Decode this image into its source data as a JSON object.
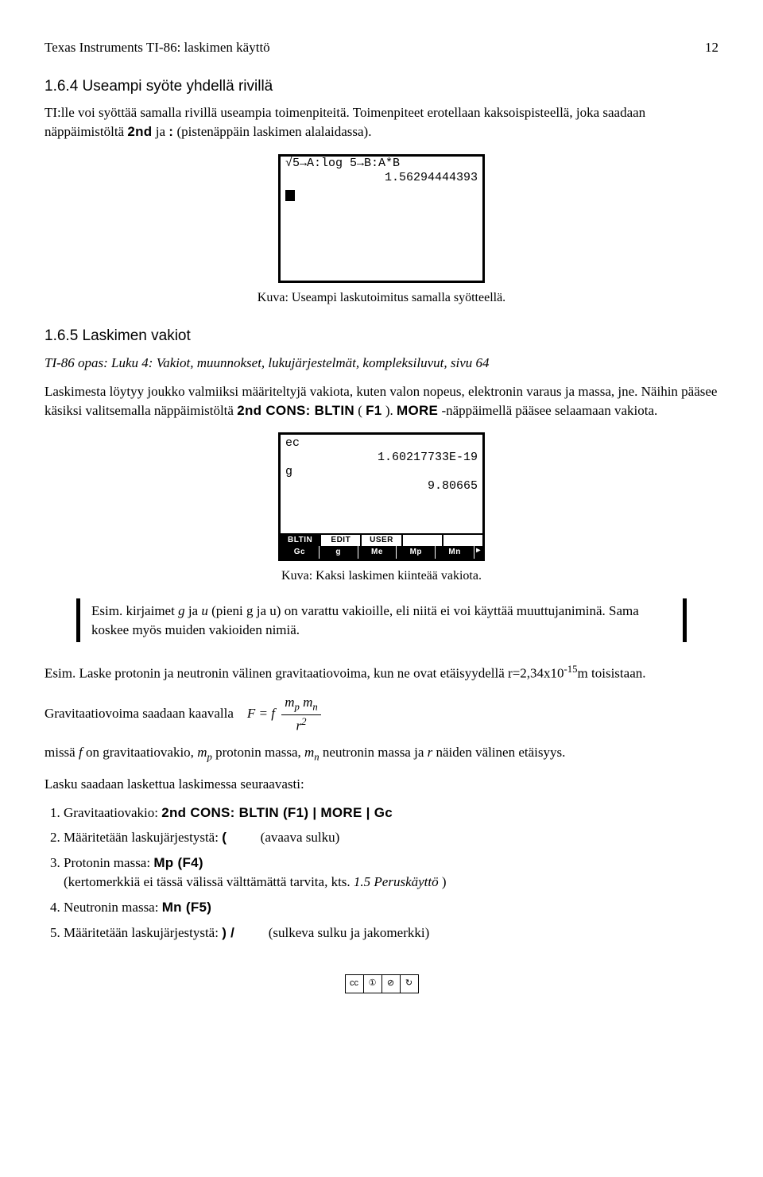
{
  "header": {
    "title": "Texas Instruments TI-86: laskimen käyttö",
    "page": "12"
  },
  "sec164": {
    "heading": "1.6.4 Useampi syöte yhdellä rivillä",
    "p1": "TI:lle voi syöttää samalla rivillä useampia toimenpiteitä. Toimenpiteet erotellaan kaksoispisteellä, joka saadaan näppäimistöltä ",
    "key1": "2nd",
    "p1b": " ja ",
    "key2": ":",
    "p1c": " (pistenäppäin laskimen alalaidassa).",
    "screen_line1": "√5→A:log 5→B:A*B",
    "screen_line2": "1.56294444393",
    "caption": "Kuva: Useampi laskutoimitus samalla syötteellä."
  },
  "sec165": {
    "heading": "1.6.5 Laskimen vakiot",
    "ref": "TI-86 opas: Luku 4: Vakiot, muunnokset, lukujärjestelmät, kompleksiluvut, sivu 64",
    "p1a": "Laskimesta löytyy joukko valmiiksi määriteltyjä vakiota, kuten valon nopeus, elektronin varaus ja massa, jne. Näihin pääsee käsiksi valitsemalla näppäimistöltä ",
    "key1": "2nd CONS: BLTIN",
    "key1b": " (",
    "key1c": "F1",
    "key1d": "). ",
    "key2": "MORE",
    "p1b": " -näppäimellä pääsee selaamaan vakiota.",
    "screen": {
      "l1": "ec",
      "l1r": "1.60217733E-19",
      "l2": "g",
      "l2r": "9.80665",
      "top": [
        "BLTIN",
        "EDIT",
        "USER",
        "",
        ""
      ],
      "bot": [
        "Gc",
        "g",
        "Me",
        "Mp",
        "Mn"
      ]
    },
    "caption": "Kuva: Kaksi laskimen kiinteää vakiota.",
    "note": "Esim. kirjaimet g ja u (pieni g ja u) on varattu vakioille, eli niitä ei voi käyttää muuttujaniminä. Sama koskee myös muiden vakioiden nimiä."
  },
  "example": {
    "p1a": "Esim. Laske protonin ja neutronin välinen gravitaatiovoima, kun ne ovat etäisyydellä r=2,34x10",
    "p1sup": "-15",
    "p1b": "m toisistaan.",
    "p2": "Gravitaatiovoima saadaan kaavalla",
    "formula_lhs": "F = f",
    "formula_top": "mₚ mₙ",
    "formula_bot": "r²",
    "p3a": "missä ",
    "p3f": "f",
    "p3b": " on gravitaatiovakio, ",
    "p3mp": "mₚ",
    "p3c": " protonin massa, ",
    "p3mn": "mₙ",
    "p3d": " neutronin massa ja ",
    "p3r": "r",
    "p3e": " näiden välinen etäisyys.",
    "p4": "Lasku saadaan laskettua laskimessa seuraavasti:",
    "steps": {
      "s1a": "Gravitaatiovakio: ",
      "s1k": "2nd CONS: BLTIN (F1) | MORE | Gc",
      "s2a": "Määritetään laskujärjestystä: ",
      "s2k": "(",
      "s2b": "(avaava sulku)",
      "s3a": "Protonin massa: ",
      "s3k": "Mp (F4)",
      "s3b": "(kertomerkkiä ei tässä välissä välttämättä tarvita, kts. ",
      "s3c": "1.5 Peruskäyttö",
      "s3d": ")",
      "s4a": "Neutronin massa: ",
      "s4k": "Mn (F5)",
      "s5a": "Määritetään laskujärjestystä: ",
      "s5k": ") /",
      "s5b": "(sulkeva sulku ja jakomerkki)"
    }
  }
}
